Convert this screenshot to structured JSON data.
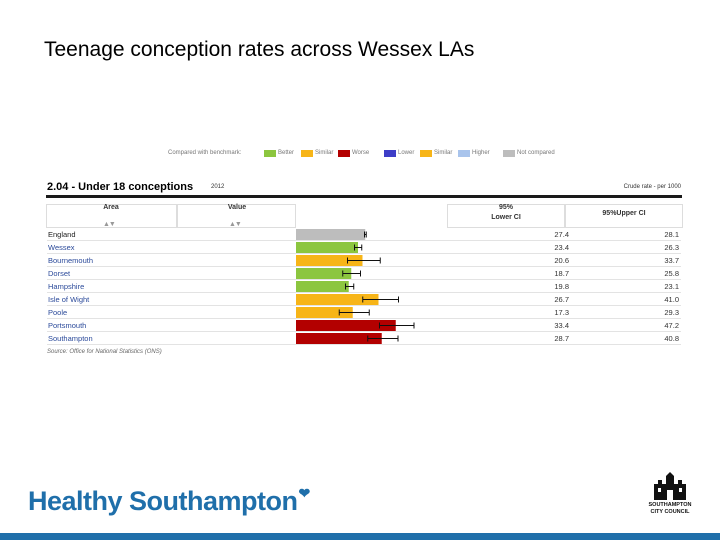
{
  "slide": {
    "title": "Teenage conception rates across Wessex LAs",
    "brand": "Healthy Southampton",
    "council_logo_text": [
      "SOUTHAMPTON",
      "CITY COUNCIL"
    ]
  },
  "legend": {
    "prefix": "Compared with benchmark:",
    "items": [
      {
        "label": "Better",
        "color": "#8cc63f"
      },
      {
        "label": "Similar",
        "color": "#f7b518"
      },
      {
        "label": "Worse",
        "color": "#b30000"
      },
      {
        "label": "Lower",
        "color": "#3d3dc7"
      },
      {
        "label": "Similar",
        "color": "#f7b518"
      },
      {
        "label": "Higher",
        "color": "#a9c4ec"
      },
      {
        "label": "Not compared",
        "color": "#bdbdbd"
      }
    ]
  },
  "table": {
    "heading": "2.04 - Under 18 conceptions",
    "year": "2012",
    "crude_rate": "Crude rate - per 1000",
    "col_area": "Area",
    "col_value": "Value",
    "col_lower_1": "95%",
    "col_lower_2": "Lower CI",
    "col_upper": "95%Upper CI",
    "sort_glyph": "▲▼",
    "source": "Source: Office for National Statistics (ONS)"
  },
  "chart_data": {
    "type": "bar",
    "title": "2.04 - Under 18 conceptions",
    "subtitle": "2012",
    "xlabel": "",
    "ylabel": "",
    "orientation": "horizontal",
    "categories": [
      "England",
      "Wessex",
      "Bournemouth",
      "Dorset",
      "Hampshire",
      "Isle of Wight",
      "Poole",
      "Portsmouth",
      "Southampton"
    ],
    "values": [
      27.7,
      24.8,
      26.6,
      22.1,
      21.1,
      33.0,
      22.7,
      39.9,
      34.3
    ],
    "lower_ci": [
      27.4,
      23.4,
      20.6,
      18.7,
      19.8,
      26.7,
      17.3,
      33.4,
      28.7
    ],
    "upper_ci": [
      28.1,
      26.3,
      33.7,
      25.8,
      23.1,
      41.0,
      29.3,
      47.2,
      40.8
    ],
    "bar_colors": [
      "#bdbdbd",
      "#8cc63f",
      "#f7b518",
      "#8cc63f",
      "#8cc63f",
      "#f7b518",
      "#f7b518",
      "#b30000",
      "#b30000"
    ],
    "xlim": [
      0,
      60
    ],
    "grid": false
  }
}
